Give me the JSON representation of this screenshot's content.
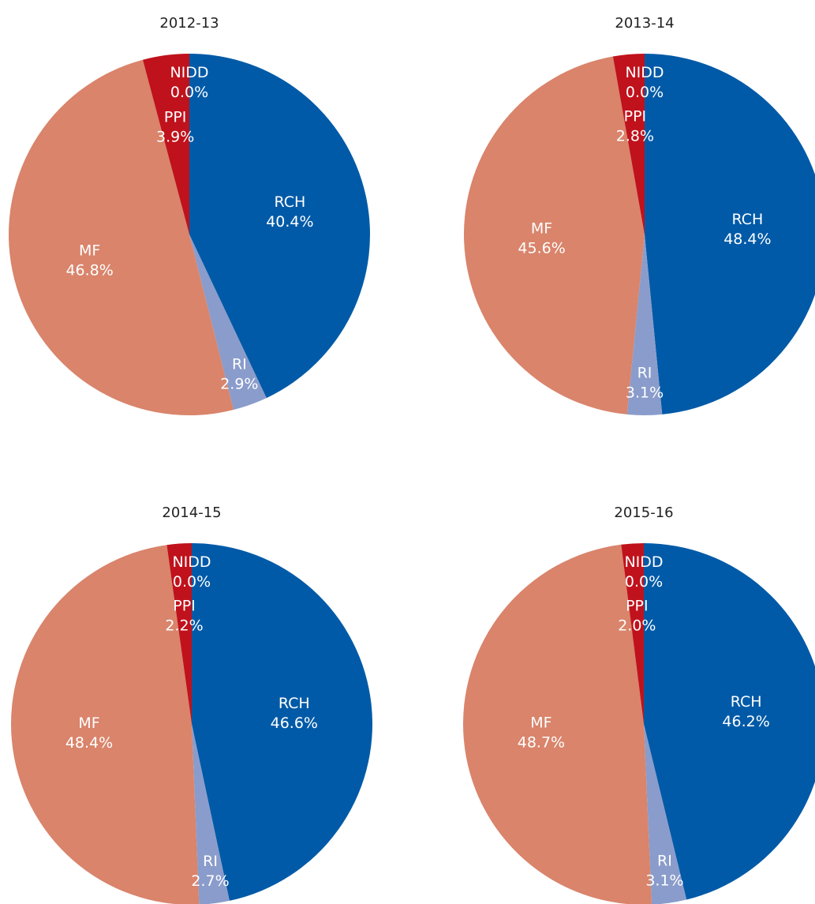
{
  "chart_data": [
    {
      "type": "pie",
      "title": "2012-13",
      "categories": [
        "RCH",
        "RI",
        "MF",
        "PPI",
        "NIDD"
      ],
      "values": [
        40.4,
        2.9,
        46.8,
        3.9,
        0.0
      ],
      "value_labels": [
        "40.4%",
        "2.9%",
        "46.8%",
        "3.9%",
        "0.0%"
      ],
      "colors": [
        "#005aa7",
        "#8a9ccb",
        "#d9846b",
        "#c0121c",
        "#c0121c"
      ]
    },
    {
      "type": "pie",
      "title": "2013-14",
      "categories": [
        "RCH",
        "RI",
        "MF",
        "PPI",
        "NIDD"
      ],
      "values": [
        48.4,
        3.1,
        45.6,
        2.8,
        0.0
      ],
      "value_labels": [
        "48.4%",
        "3.1%",
        "45.6%",
        "2.8%",
        "0.0%"
      ],
      "colors": [
        "#005aa7",
        "#8a9ccb",
        "#d9846b",
        "#c0121c",
        "#c0121c"
      ]
    },
    {
      "type": "pie",
      "title": "2014-15",
      "categories": [
        "RCH",
        "RI",
        "MF",
        "PPI",
        "NIDD"
      ],
      "values": [
        46.6,
        2.7,
        48.4,
        2.2,
        0.0
      ],
      "value_labels": [
        "46.6%",
        "2.7%",
        "48.4%",
        "2.2%",
        "0.0%"
      ],
      "colors": [
        "#005aa7",
        "#8a9ccb",
        "#d9846b",
        "#c0121c",
        "#c0121c"
      ]
    },
    {
      "type": "pie",
      "title": "2015-16",
      "categories": [
        "RCH",
        "RI",
        "MF",
        "PPI",
        "NIDD"
      ],
      "values": [
        46.2,
        3.1,
        48.7,
        2.0,
        0.0
      ],
      "value_labels": [
        "46.2%",
        "3.1%",
        "48.7%",
        "2.0%",
        "0.0%"
      ],
      "colors": [
        "#005aa7",
        "#8a9ccb",
        "#d9846b",
        "#c0121c",
        "#c0121c"
      ]
    }
  ]
}
